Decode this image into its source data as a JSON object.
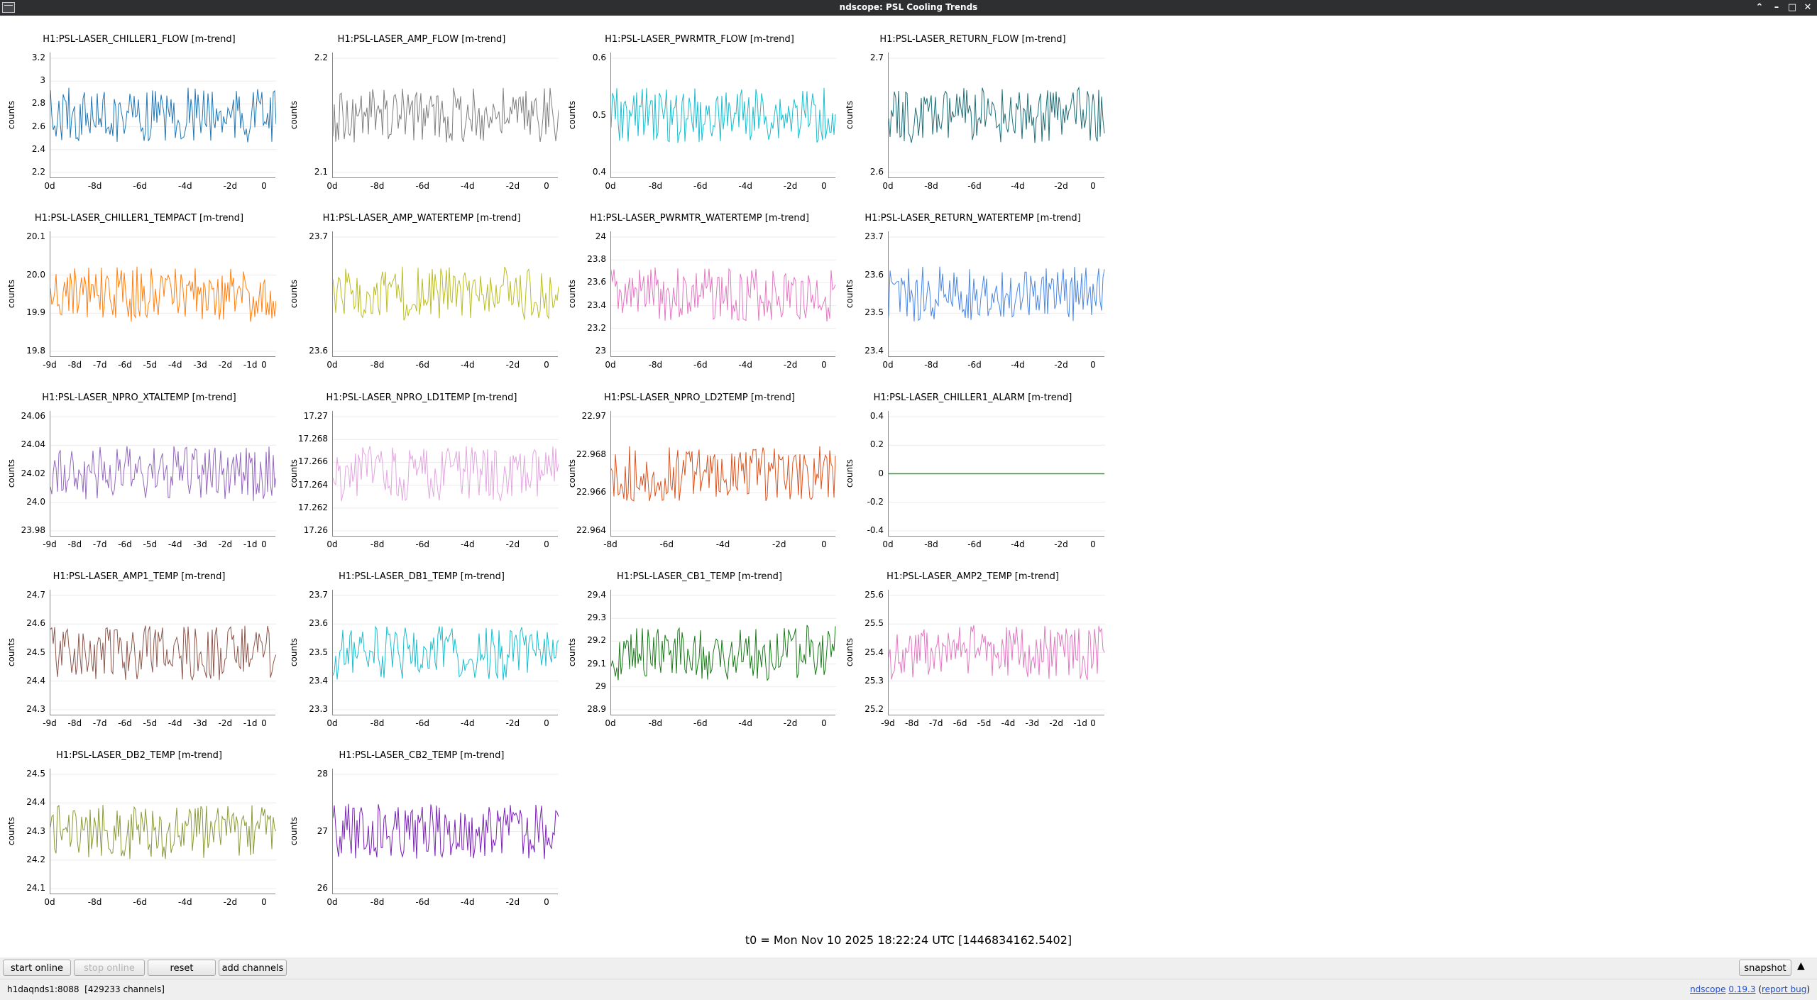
{
  "window": {
    "title": "ndscope: PSL Cooling Trends"
  },
  "t0_label": "t0 = Mon Nov 10 2025 18:22:24 UTC [1446834162.5402]",
  "toolbar": {
    "start_online": "start online",
    "stop_online": "stop online",
    "reset": "reset",
    "add_channels": "add channels",
    "snapshot": "snapshot"
  },
  "status": {
    "server": "h1daqnds1:8088",
    "channels": "[429233 channels]",
    "app": "ndscope",
    "version": "0.19.3",
    "report_bug": "report bug"
  },
  "plots": [
    {
      "title": "H1:PSL-LASER_CHILLER1_FLOW [m-trend]",
      "ylabel": "counts",
      "color": "#1f77b4",
      "yticks": [
        "3.2",
        "3",
        "2.8",
        "2.6",
        "2.4",
        "2.2"
      ],
      "xticks": [
        "0d",
        "-8d",
        "-6d",
        "-4d",
        "-2d",
        "0"
      ]
    },
    {
      "title": "H1:PSL-LASER_AMP_FLOW [m-trend]",
      "ylabel": "counts",
      "color": "#7f7f7f",
      "yticks": [
        "2.2",
        "2.1"
      ],
      "xticks": [
        "0d",
        "-8d",
        "-6d",
        "-4d",
        "-2d",
        "0"
      ]
    },
    {
      "title": "H1:PSL-LASER_PWRMTR_FLOW [m-trend]",
      "ylabel": "counts",
      "color": "#17becf",
      "yticks": [
        "0.6",
        "0.5",
        "0.4"
      ],
      "xticks": [
        "0d",
        "-8d",
        "-6d",
        "-4d",
        "-2d",
        "0"
      ]
    },
    {
      "title": "H1:PSL-LASER_RETURN_FLOW [m-trend]",
      "ylabel": "counts",
      "color": "#1d6f78",
      "yticks": [
        "2.7",
        "2.6"
      ],
      "xticks": [
        "0d",
        "-8d",
        "-6d",
        "-4d",
        "-2d",
        "0"
      ]
    },
    {
      "title": "H1:PSL-LASER_CHILLER1_TEMPACT [m-trend]",
      "ylabel": "counts",
      "color": "#ff7f0e",
      "yticks": [
        "20.1",
        "20.0",
        "19.9",
        "19.8"
      ],
      "xticks": [
        "-9d",
        "-8d",
        "-7d",
        "-6d",
        "-5d",
        "-4d",
        "-3d",
        "-2d",
        "-1d",
        "0"
      ]
    },
    {
      "title": "H1:PSL-LASER_AMP_WATERTEMP [m-trend]",
      "ylabel": "counts",
      "color": "#bcbd22",
      "yticks": [
        "23.7",
        "23.6"
      ],
      "xticks": [
        "0d",
        "-8d",
        "-6d",
        "-4d",
        "-2d",
        "0"
      ]
    },
    {
      "title": "H1:PSL-LASER_PWRMTR_WATERTEMP [m-trend]",
      "ylabel": "counts",
      "color": "#e377c2",
      "yticks": [
        "24",
        "23.8",
        "23.6",
        "23.4",
        "23.2",
        "23"
      ],
      "xticks": [
        "0d",
        "-8d",
        "-6d",
        "-4d",
        "-2d",
        "0"
      ]
    },
    {
      "title": "H1:PSL-LASER_RETURN_WATERTEMP [m-trend]",
      "ylabel": "counts",
      "color": "#4a86e8",
      "yticks": [
        "23.7",
        "23.6",
        "23.5",
        "23.4"
      ],
      "xticks": [
        "0d",
        "-8d",
        "-6d",
        "-4d",
        "-2d",
        "0"
      ]
    },
    {
      "title": "H1:PSL-LASER_NPRO_XTALTEMP [m-trend]",
      "ylabel": "counts",
      "color": "#9467bd",
      "yticks": [
        "24.06",
        "24.04",
        "24.02",
        "24.0",
        "23.98"
      ],
      "xticks": [
        "-9d",
        "-8d",
        "-7d",
        "-6d",
        "-5d",
        "-4d",
        "-3d",
        "-2d",
        "-1d",
        "0"
      ]
    },
    {
      "title": "H1:PSL-LASER_NPRO_LD1TEMP [m-trend]",
      "ylabel": "counts",
      "color": "#e3a6e0",
      "yticks": [
        "17.27",
        "17.268",
        "17.266",
        "17.264",
        "17.262",
        "17.26"
      ],
      "xticks": [
        "0d",
        "-8d",
        "-6d",
        "-4d",
        "-2d",
        "0"
      ]
    },
    {
      "title": "H1:PSL-LASER_NPRO_LD2TEMP [m-trend]",
      "ylabel": "counts",
      "color": "#d9531e",
      "yticks": [
        "22.97",
        "22.968",
        "22.966",
        "22.964"
      ],
      "xticks": [
        "-8d",
        "-6d",
        "-4d",
        "-2d",
        "0"
      ]
    },
    {
      "title": "H1:PSL-LASER_CHILLER1_ALARM [m-trend]",
      "ylabel": "counts",
      "color": "#2ca02c",
      "yticks": [
        "0.4",
        "0.2",
        "0",
        "-0.2",
        "-0.4"
      ],
      "xticks": [
        "0d",
        "-8d",
        "-6d",
        "-4d",
        "-2d",
        "0"
      ]
    },
    {
      "title": "H1:PSL-LASER_AMP1_TEMP [m-trend]",
      "ylabel": "counts",
      "color": "#8c564b",
      "yticks": [
        "24.7",
        "24.6",
        "24.5",
        "24.4",
        "24.3"
      ],
      "xticks": [
        "-9d",
        "-8d",
        "-7d",
        "-6d",
        "-5d",
        "-4d",
        "-3d",
        "-2d",
        "-1d",
        "0"
      ]
    },
    {
      "title": "H1:PSL-LASER_DB1_TEMP [m-trend]",
      "ylabel": "counts",
      "color": "#17becf",
      "yticks": [
        "23.7",
        "23.6",
        "23.5",
        "23.4",
        "23.3"
      ],
      "xticks": [
        "0d",
        "-8d",
        "-6d",
        "-4d",
        "-2d",
        "0"
      ]
    },
    {
      "title": "H1:PSL-LASER_CB1_TEMP [m-trend]",
      "ylabel": "counts",
      "color": "#1a7a1a",
      "yticks": [
        "29.4",
        "29.3",
        "29.2",
        "29.1",
        "29",
        "28.9"
      ],
      "xticks": [
        "0d",
        "-8d",
        "-6d",
        "-4d",
        "-2d",
        "0"
      ]
    },
    {
      "title": "H1:PSL-LASER_AMP2_TEMP [m-trend]",
      "ylabel": "counts",
      "color": "#e377c2",
      "yticks": [
        "25.6",
        "25.5",
        "25.4",
        "25.3",
        "25.2"
      ],
      "xticks": [
        "-9d",
        "-8d",
        "-7d",
        "-6d",
        "-5d",
        "-4d",
        "-3d",
        "-2d",
        "-1d",
        "0"
      ]
    },
    {
      "title": "H1:PSL-LASER_DB2_TEMP [m-trend]",
      "ylabel": "counts",
      "color": "#8a9a3a",
      "yticks": [
        "24.5",
        "24.4",
        "24.3",
        "24.2",
        "24.1"
      ],
      "xticks": [
        "0d",
        "-8d",
        "-6d",
        "-4d",
        "-2d",
        "0"
      ]
    },
    {
      "title": "H1:PSL-LASER_CB2_TEMP [m-trend]",
      "ylabel": "counts",
      "color": "#7b1fb5",
      "yticks": [
        "28",
        "27",
        "26"
      ],
      "xticks": [
        "0d",
        "-8d",
        "-6d",
        "-4d",
        "-2d",
        "0"
      ]
    }
  ]
}
